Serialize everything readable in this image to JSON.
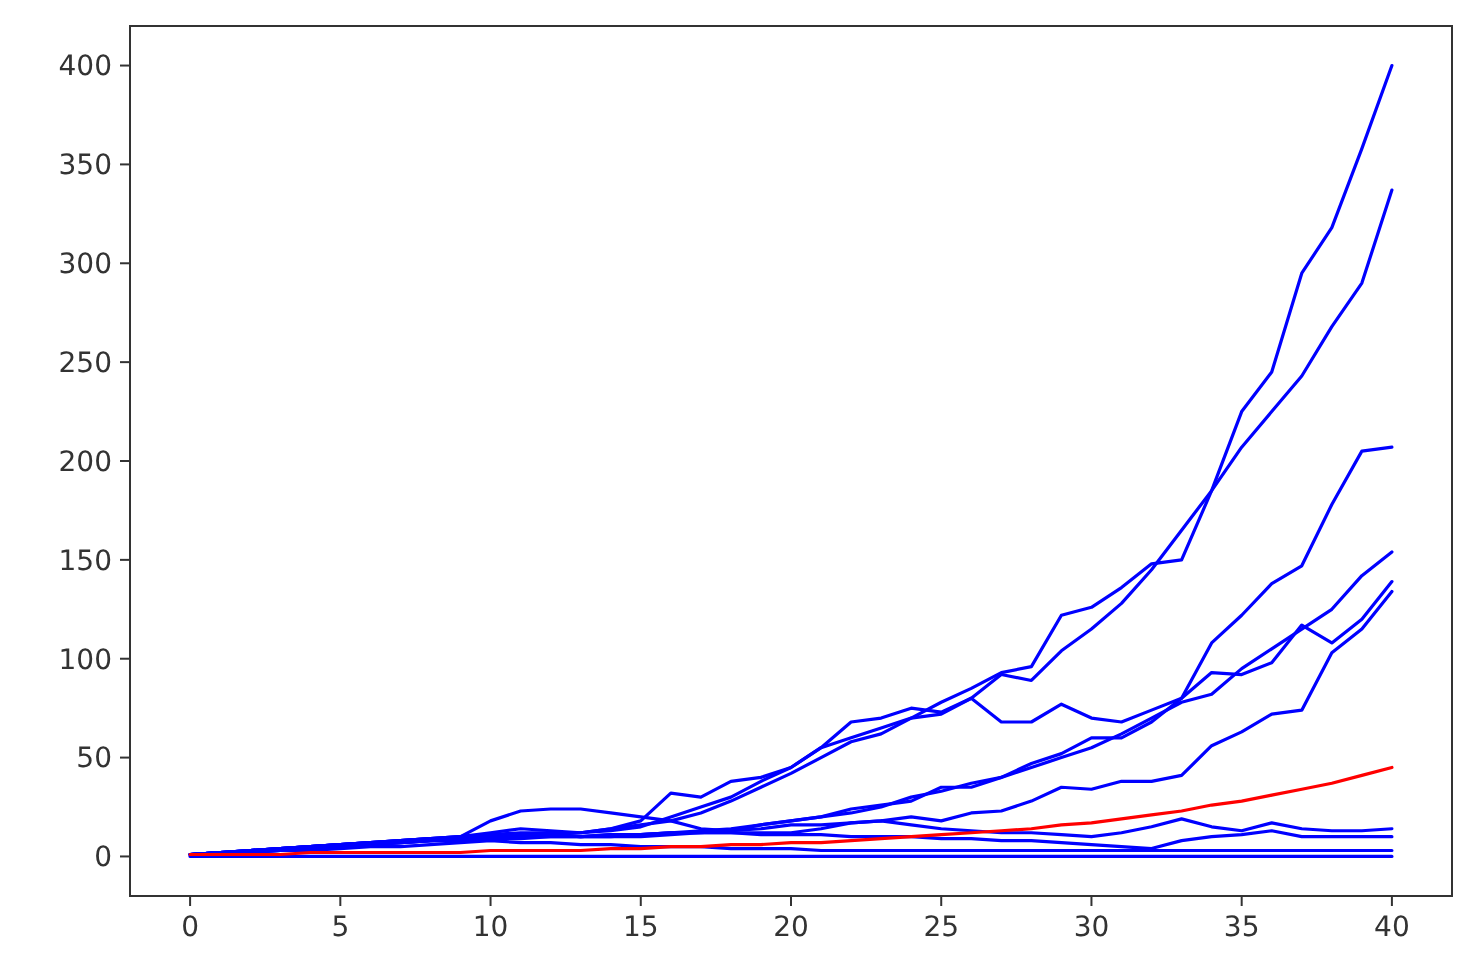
{
  "chart_data": {
    "type": "line",
    "x": [
      0,
      1,
      2,
      3,
      4,
      5,
      6,
      7,
      8,
      9,
      10,
      11,
      12,
      13,
      14,
      15,
      16,
      17,
      18,
      19,
      20,
      21,
      22,
      23,
      24,
      25,
      26,
      27,
      28,
      29,
      30,
      31,
      32,
      33,
      34,
      35,
      36,
      37,
      38,
      39,
      40
    ],
    "series": [
      {
        "color": "#0000ff",
        "values": [
          1,
          2,
          2,
          3,
          4,
          5,
          6,
          7,
          8,
          9,
          10,
          10,
          11,
          12,
          14,
          16,
          18,
          22,
          28,
          35,
          42,
          50,
          58,
          62,
          70,
          78,
          85,
          93,
          96,
          122,
          126,
          136,
          148,
          150,
          185,
          225,
          245,
          295,
          318,
          358,
          400
        ]
      },
      {
        "color": "#0000ff",
        "values": [
          1,
          2,
          3,
          4,
          5,
          6,
          7,
          8,
          9,
          10,
          12,
          14,
          13,
          12,
          13,
          15,
          20,
          25,
          30,
          38,
          45,
          55,
          60,
          65,
          70,
          72,
          80,
          92,
          89,
          104,
          115,
          128,
          145,
          165,
          185,
          207,
          225,
          243,
          268,
          290,
          337
        ]
      },
      {
        "color": "#0000ff",
        "values": [
          1,
          2,
          3,
          4,
          5,
          6,
          6,
          7,
          8,
          9,
          10,
          11,
          11,
          10,
          10,
          11,
          12,
          13,
          14,
          16,
          18,
          20,
          24,
          26,
          28,
          35,
          35,
          40,
          47,
          52,
          60,
          60,
          68,
          80,
          108,
          122,
          138,
          147,
          178,
          205,
          207
        ]
      },
      {
        "color": "#0000ff",
        "values": [
          1,
          2,
          3,
          4,
          5,
          6,
          7,
          8,
          9,
          10,
          18,
          23,
          24,
          24,
          22,
          20,
          18,
          14,
          13,
          16,
          18,
          20,
          22,
          25,
          30,
          33,
          37,
          40,
          45,
          50,
          55,
          62,
          70,
          78,
          82,
          95,
          105,
          115,
          125,
          142,
          154
        ]
      },
      {
        "color": "#0000ff",
        "values": [
          1,
          2,
          3,
          4,
          5,
          6,
          7,
          8,
          9,
          10,
          11,
          12,
          12,
          12,
          14,
          18,
          32,
          30,
          38,
          40,
          45,
          55,
          68,
          70,
          75,
          73,
          80,
          68,
          68,
          77,
          70,
          68,
          74,
          80,
          93,
          92,
          98,
          117,
          108,
          120,
          139
        ]
      },
      {
        "color": "#0000ff",
        "values": [
          1,
          2,
          2,
          3,
          4,
          5,
          6,
          7,
          8,
          8,
          9,
          10,
          10,
          10,
          11,
          11,
          12,
          12,
          12,
          12,
          12,
          14,
          17,
          18,
          20,
          18,
          22,
          23,
          28,
          35,
          34,
          38,
          38,
          41,
          56,
          63,
          72,
          74,
          103,
          115,
          134
        ]
      },
      {
        "color": "#0000ff",
        "values": [
          1,
          2,
          3,
          4,
          5,
          6,
          7,
          8,
          9,
          9,
          10,
          11,
          11,
          10,
          10,
          10,
          11,
          12,
          13,
          14,
          16,
          16,
          17,
          18,
          16,
          14,
          13,
          12,
          12,
          11,
          10,
          12,
          15,
          19,
          15,
          13,
          17,
          14,
          13,
          13,
          14
        ]
      },
      {
        "color": "#0000ff",
        "values": [
          1,
          2,
          3,
          4,
          5,
          6,
          7,
          7,
          8,
          8,
          9,
          9,
          10,
          10,
          11,
          11,
          12,
          12,
          12,
          11,
          11,
          11,
          10,
          10,
          10,
          9,
          9,
          8,
          8,
          7,
          6,
          5,
          4,
          8,
          10,
          11,
          13,
          10,
          10,
          10,
          10
        ]
      },
      {
        "color": "#0000ff",
        "values": [
          1,
          2,
          2,
          3,
          3,
          4,
          5,
          5,
          6,
          7,
          8,
          7,
          7,
          6,
          6,
          5,
          5,
          5,
          4,
          4,
          4,
          3,
          3,
          3,
          3,
          3,
          3,
          3,
          3,
          3,
          3,
          3,
          3,
          3,
          3,
          3,
          3,
          3,
          3,
          3,
          3
        ]
      },
      {
        "color": "#0000ff",
        "values": [
          0,
          0,
          0,
          0,
          0,
          0,
          0,
          0,
          0,
          0,
          0,
          0,
          0,
          0,
          0,
          0,
          0,
          0,
          0,
          0,
          0,
          0,
          0,
          0,
          0,
          0,
          0,
          0,
          0,
          0,
          0,
          0,
          0,
          0,
          0,
          0,
          0,
          0,
          0,
          0,
          0
        ]
      },
      {
        "color": "#ff0000",
        "values": [
          1,
          1,
          1,
          1,
          2,
          2,
          2,
          2,
          2,
          2,
          3,
          3,
          3,
          3,
          4,
          4,
          5,
          5,
          6,
          6,
          7,
          7,
          8,
          9,
          10,
          11,
          12,
          13,
          14,
          16,
          17,
          19,
          21,
          23,
          26,
          28,
          31,
          34,
          37,
          41,
          45
        ]
      }
    ],
    "xlim": [
      -2,
      42
    ],
    "ylim": [
      -20,
      420
    ],
    "xticks": [
      0,
      5,
      10,
      15,
      20,
      25,
      30,
      35,
      40
    ],
    "yticks": [
      0,
      50,
      100,
      150,
      200,
      250,
      300,
      350,
      400
    ],
    "grid": false
  }
}
